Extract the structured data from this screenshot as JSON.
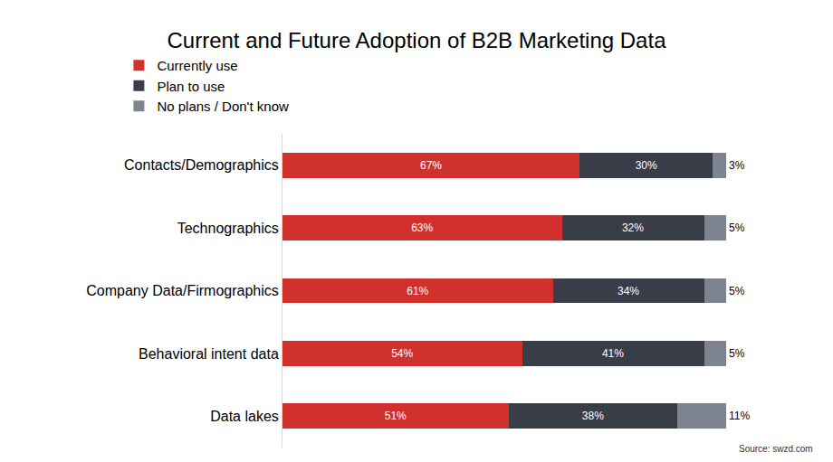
{
  "chart_data": {
    "type": "bar",
    "title": "Current and Future Adoption of B2B Marketing Data",
    "orientation": "horizontal",
    "stacked": true,
    "data_labels": true,
    "tick_labels": "y",
    "grid": false,
    "legend": "top",
    "annotations": [
      "Source: swzd.com"
    ],
    "categories": [
      "Contacts/Demographics",
      "Technographics",
      "Company Data/Firmographics",
      "Behavioral intent data",
      "Data lakes"
    ],
    "xlim": [
      0,
      100
    ],
    "series": [
      {
        "name": "Currently use",
        "color": "#d0312d",
        "values": [
          67,
          63,
          61,
          54,
          51
        ],
        "value_labels": [
          "67%",
          "63%",
          "61%",
          "54%",
          "51%"
        ]
      },
      {
        "name": "Plan to use",
        "color": "#393d47",
        "values": [
          30,
          32,
          34,
          41,
          38
        ],
        "value_labels": [
          "30%",
          "32%",
          "34%",
          "41%",
          "38%"
        ]
      },
      {
        "name": "No plans / Don't know",
        "color": "#7d8490",
        "values": [
          3,
          5,
          5,
          5,
          11
        ],
        "value_labels": [
          "3%",
          "5%",
          "5%",
          "5%",
          "11%"
        ]
      }
    ]
  }
}
